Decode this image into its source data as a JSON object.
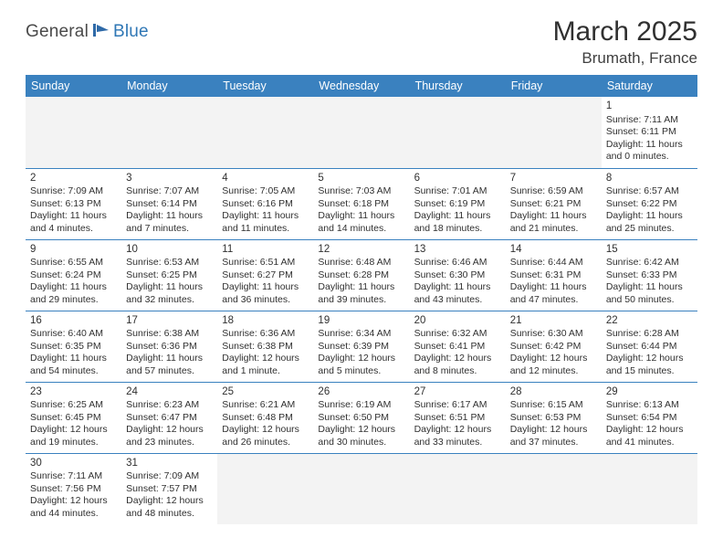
{
  "logo": {
    "general": "General",
    "blue": "Blue"
  },
  "title": "March 2025",
  "location": "Brumath, France",
  "header_color": "#3a81bf",
  "daynames": [
    "Sunday",
    "Monday",
    "Tuesday",
    "Wednesday",
    "Thursday",
    "Friday",
    "Saturday"
  ],
  "weeks": [
    [
      null,
      null,
      null,
      null,
      null,
      null,
      {
        "n": "1",
        "sr": "Sunrise: 7:11 AM",
        "ss": "Sunset: 6:11 PM",
        "dl": "Daylight: 11 hours and 0 minutes."
      }
    ],
    [
      {
        "n": "2",
        "sr": "Sunrise: 7:09 AM",
        "ss": "Sunset: 6:13 PM",
        "dl": "Daylight: 11 hours and 4 minutes."
      },
      {
        "n": "3",
        "sr": "Sunrise: 7:07 AM",
        "ss": "Sunset: 6:14 PM",
        "dl": "Daylight: 11 hours and 7 minutes."
      },
      {
        "n": "4",
        "sr": "Sunrise: 7:05 AM",
        "ss": "Sunset: 6:16 PM",
        "dl": "Daylight: 11 hours and 11 minutes."
      },
      {
        "n": "5",
        "sr": "Sunrise: 7:03 AM",
        "ss": "Sunset: 6:18 PM",
        "dl": "Daylight: 11 hours and 14 minutes."
      },
      {
        "n": "6",
        "sr": "Sunrise: 7:01 AM",
        "ss": "Sunset: 6:19 PM",
        "dl": "Daylight: 11 hours and 18 minutes."
      },
      {
        "n": "7",
        "sr": "Sunrise: 6:59 AM",
        "ss": "Sunset: 6:21 PM",
        "dl": "Daylight: 11 hours and 21 minutes."
      },
      {
        "n": "8",
        "sr": "Sunrise: 6:57 AM",
        "ss": "Sunset: 6:22 PM",
        "dl": "Daylight: 11 hours and 25 minutes."
      }
    ],
    [
      {
        "n": "9",
        "sr": "Sunrise: 6:55 AM",
        "ss": "Sunset: 6:24 PM",
        "dl": "Daylight: 11 hours and 29 minutes."
      },
      {
        "n": "10",
        "sr": "Sunrise: 6:53 AM",
        "ss": "Sunset: 6:25 PM",
        "dl": "Daylight: 11 hours and 32 minutes."
      },
      {
        "n": "11",
        "sr": "Sunrise: 6:51 AM",
        "ss": "Sunset: 6:27 PM",
        "dl": "Daylight: 11 hours and 36 minutes."
      },
      {
        "n": "12",
        "sr": "Sunrise: 6:48 AM",
        "ss": "Sunset: 6:28 PM",
        "dl": "Daylight: 11 hours and 39 minutes."
      },
      {
        "n": "13",
        "sr": "Sunrise: 6:46 AM",
        "ss": "Sunset: 6:30 PM",
        "dl": "Daylight: 11 hours and 43 minutes."
      },
      {
        "n": "14",
        "sr": "Sunrise: 6:44 AM",
        "ss": "Sunset: 6:31 PM",
        "dl": "Daylight: 11 hours and 47 minutes."
      },
      {
        "n": "15",
        "sr": "Sunrise: 6:42 AM",
        "ss": "Sunset: 6:33 PM",
        "dl": "Daylight: 11 hours and 50 minutes."
      }
    ],
    [
      {
        "n": "16",
        "sr": "Sunrise: 6:40 AM",
        "ss": "Sunset: 6:35 PM",
        "dl": "Daylight: 11 hours and 54 minutes."
      },
      {
        "n": "17",
        "sr": "Sunrise: 6:38 AM",
        "ss": "Sunset: 6:36 PM",
        "dl": "Daylight: 11 hours and 57 minutes."
      },
      {
        "n": "18",
        "sr": "Sunrise: 6:36 AM",
        "ss": "Sunset: 6:38 PM",
        "dl": "Daylight: 12 hours and 1 minute."
      },
      {
        "n": "19",
        "sr": "Sunrise: 6:34 AM",
        "ss": "Sunset: 6:39 PM",
        "dl": "Daylight: 12 hours and 5 minutes."
      },
      {
        "n": "20",
        "sr": "Sunrise: 6:32 AM",
        "ss": "Sunset: 6:41 PM",
        "dl": "Daylight: 12 hours and 8 minutes."
      },
      {
        "n": "21",
        "sr": "Sunrise: 6:30 AM",
        "ss": "Sunset: 6:42 PM",
        "dl": "Daylight: 12 hours and 12 minutes."
      },
      {
        "n": "22",
        "sr": "Sunrise: 6:28 AM",
        "ss": "Sunset: 6:44 PM",
        "dl": "Daylight: 12 hours and 15 minutes."
      }
    ],
    [
      {
        "n": "23",
        "sr": "Sunrise: 6:25 AM",
        "ss": "Sunset: 6:45 PM",
        "dl": "Daylight: 12 hours and 19 minutes."
      },
      {
        "n": "24",
        "sr": "Sunrise: 6:23 AM",
        "ss": "Sunset: 6:47 PM",
        "dl": "Daylight: 12 hours and 23 minutes."
      },
      {
        "n": "25",
        "sr": "Sunrise: 6:21 AM",
        "ss": "Sunset: 6:48 PM",
        "dl": "Daylight: 12 hours and 26 minutes."
      },
      {
        "n": "26",
        "sr": "Sunrise: 6:19 AM",
        "ss": "Sunset: 6:50 PM",
        "dl": "Daylight: 12 hours and 30 minutes."
      },
      {
        "n": "27",
        "sr": "Sunrise: 6:17 AM",
        "ss": "Sunset: 6:51 PM",
        "dl": "Daylight: 12 hours and 33 minutes."
      },
      {
        "n": "28",
        "sr": "Sunrise: 6:15 AM",
        "ss": "Sunset: 6:53 PM",
        "dl": "Daylight: 12 hours and 37 minutes."
      },
      {
        "n": "29",
        "sr": "Sunrise: 6:13 AM",
        "ss": "Sunset: 6:54 PM",
        "dl": "Daylight: 12 hours and 41 minutes."
      }
    ],
    [
      {
        "n": "30",
        "sr": "Sunrise: 7:11 AM",
        "ss": "Sunset: 7:56 PM",
        "dl": "Daylight: 12 hours and 44 minutes."
      },
      {
        "n": "31",
        "sr": "Sunrise: 7:09 AM",
        "ss": "Sunset: 7:57 PM",
        "dl": "Daylight: 12 hours and 48 minutes."
      },
      null,
      null,
      null,
      null,
      null
    ]
  ]
}
